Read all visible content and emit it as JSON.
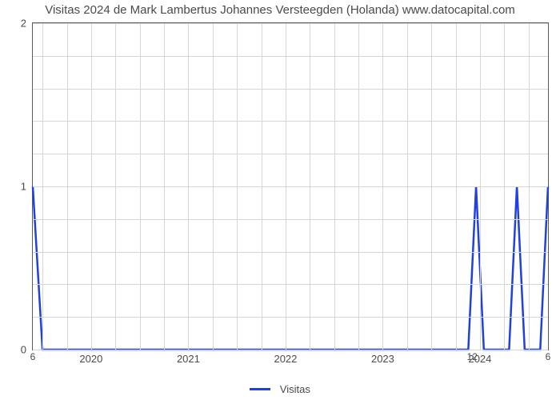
{
  "chart": {
    "type": "line",
    "title": "Visitas 2024 de Mark Lambertus Johannes Versteegden (Holanda) www.datocapital.com",
    "title_fontsize": 15,
    "title_color": "#4a4a4a",
    "background_color": "#ffffff",
    "plot_border_color": "#5a5a5a",
    "grid_color": "#d6d6d6",
    "x": {
      "min": 2019.4,
      "max": 2024.7,
      "ticks": [
        2020,
        2021,
        2022,
        2023,
        2024
      ],
      "tick_labels": [
        "2020",
        "2021",
        "2022",
        "2023",
        "2024"
      ],
      "minor_grid_interval": 0.25,
      "label_fontsize": 13,
      "label_color": "#4a4a4a"
    },
    "y": {
      "min": 0,
      "max": 2,
      "ticks": [
        0,
        1,
        2
      ],
      "tick_labels": [
        "0",
        "1",
        "2"
      ],
      "minor_grid_interval": 0.2,
      "label_fontsize": 13,
      "label_color": "#4a4a4a"
    },
    "series": {
      "label": "Visitas",
      "color": "#2040e0",
      "line_width": 2.5,
      "xs": [
        2019.4,
        2019.5,
        2019.58,
        2023.88,
        2023.96,
        2024.04,
        2024.3,
        2024.38,
        2024.46,
        2024.62,
        2024.7
      ],
      "ys": [
        1.0,
        0.0,
        0.0,
        0.0,
        1.0,
        0.0,
        0.0,
        1.0,
        0.0,
        0.0,
        1.0
      ]
    },
    "data_labels": [
      {
        "x": 2019.4,
        "y": 0,
        "text": "6",
        "below": true
      },
      {
        "x": 2023.92,
        "y": 0,
        "text": "12",
        "below": true
      },
      {
        "x": 2024.7,
        "y": 0,
        "text": "6",
        "below": true
      }
    ],
    "legend": {
      "label": "Visitas",
      "swatch_color": "#2040e0",
      "fontsize": 13
    }
  }
}
